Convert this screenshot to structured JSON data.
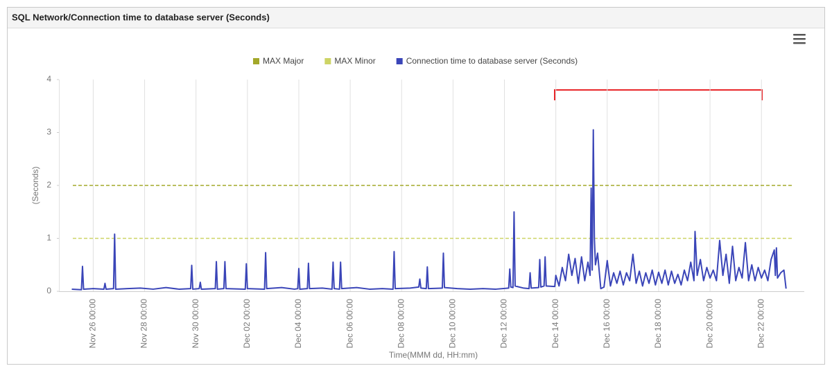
{
  "chart_data": {
    "type": "line",
    "title": "SQL Network/Connection time to database server (Seconds)",
    "xlabel": "Time(MMM dd, HH:mm)",
    "ylabel": "(Seconds)",
    "ylim": [
      0,
      4
    ],
    "yticks": [
      0,
      1,
      2,
      3,
      4
    ],
    "xlim": [
      "Nov 24 16:00",
      "Dec 23 16:00"
    ],
    "xticks": [
      "Nov 26 00:00",
      "Nov 28 00:00",
      "Nov 30 00:00",
      "Dec 02 00:00",
      "Dec 04 00:00",
      "Dec 06 00:00",
      "Dec 08 00:00",
      "Dec 10 00:00",
      "Dec 12 00:00",
      "Dec 14 00:00",
      "Dec 16 00:00",
      "Dec 18 00:00",
      "Dec 20 00:00",
      "Dec 22 00:00"
    ],
    "grid": true,
    "thresholds": [
      {
        "name": "MAX Major",
        "color": "#a3a82a",
        "value": 2
      },
      {
        "name": "MAX Minor",
        "color": "#cdd465",
        "value": 1
      }
    ],
    "x": [
      "Nov 25 04:00",
      "Nov 25 13:00",
      "Nov 25 14:00",
      "Nov 25 15:00",
      "Nov 26 00:00",
      "Nov 26 10:00",
      "Nov 26 11:00",
      "Nov 26 12:00",
      "Nov 26 19:00",
      "Nov 26 20:00",
      "Nov 26 21:00",
      "Nov 27 08:00",
      "Nov 27 20:00",
      "Nov 28 08:00",
      "Nov 28 20:00",
      "Nov 29 08:00",
      "Nov 29 19:00",
      "Nov 29 20:00",
      "Nov 29 21:00",
      "Nov 30 03:00",
      "Nov 30 04:00",
      "Nov 30 05:00",
      "Nov 30 18:00",
      "Nov 30 19:00",
      "Nov 30 20:00",
      "Dec 01 02:00",
      "Dec 01 03:00",
      "Dec 01 04:00",
      "Dec 01 22:00",
      "Dec 01 23:00",
      "Dec 02 00:00",
      "Dec 02 16:00",
      "Dec 02 17:00",
      "Dec 02 18:00",
      "Dec 03 08:00",
      "Dec 03 20:00",
      "Dec 03 23:00",
      "Dec 04 00:00",
      "Dec 04 01:00",
      "Dec 04 08:00",
      "Dec 04 09:00",
      "Dec 04 10:00",
      "Dec 04 22:00",
      "Dec 05 07:00",
      "Dec 05 08:00",
      "Dec 05 09:00",
      "Dec 05 14:00",
      "Dec 05 15:00",
      "Dec 05 16:00",
      "Dec 06 06:00",
      "Dec 06 18:00",
      "Dec 07 06:00",
      "Dec 07 16:00",
      "Dec 07 17:00",
      "Dec 07 18:00",
      "Dec 08 08:00",
      "Dec 08 16:00",
      "Dec 08 17:00",
      "Dec 08 18:00",
      "Dec 08 23:00",
      "Dec 09 00:00",
      "Dec 09 01:00",
      "Dec 09 14:00",
      "Dec 09 15:00",
      "Dec 09 16:00",
      "Dec 10 04:00",
      "Dec 10 16:00",
      "Dec 11 04:00",
      "Dec 11 16:00",
      "Dec 12 04:00",
      "Dec 12 05:00",
      "Dec 12 06:00",
      "Dec 12 08:00",
      "Dec 12 09:00",
      "Dec 12 10:00",
      "Dec 12 18:00",
      "Dec 12 23:00",
      "Dec 13 00:00",
      "Dec 13 01:00",
      "Dec 13 08:00",
      "Dec 13 09:00",
      "Dec 13 10:00",
      "Dec 13 13:00",
      "Dec 13 14:00",
      "Dec 13 15:00",
      "Dec 13 23:00",
      "Dec 14 00:00",
      "Dec 14 03:00",
      "Dec 14 06:00",
      "Dec 14 09:00",
      "Dec 14 12:00",
      "Dec 14 15:00",
      "Dec 14 18:00",
      "Dec 14 21:00",
      "Dec 15 00:00",
      "Dec 15 03:00",
      "Dec 15 06:00",
      "Dec 15 08:00",
      "Dec 15 09:00",
      "Dec 15 10:00",
      "Dec 15 11:00",
      "Dec 15 12:00",
      "Dec 15 13:00",
      "Dec 15 15:00",
      "Dec 15 18:00",
      "Dec 15 21:00",
      "Dec 16 00:00",
      "Dec 16 03:00",
      "Dec 16 06:00",
      "Dec 16 09:00",
      "Dec 16 12:00",
      "Dec 16 15:00",
      "Dec 16 18:00",
      "Dec 16 21:00",
      "Dec 17 00:00",
      "Dec 17 03:00",
      "Dec 17 06:00",
      "Dec 17 09:00",
      "Dec 17 12:00",
      "Dec 17 15:00",
      "Dec 17 18:00",
      "Dec 17 21:00",
      "Dec 18 00:00",
      "Dec 18 03:00",
      "Dec 18 06:00",
      "Dec 18 09:00",
      "Dec 18 12:00",
      "Dec 18 15:00",
      "Dec 18 18:00",
      "Dec 18 21:00",
      "Dec 19 00:00",
      "Dec 19 03:00",
      "Dec 19 06:00",
      "Dec 19 09:00",
      "Dec 19 10:00",
      "Dec 19 12:00",
      "Dec 19 15:00",
      "Dec 19 18:00",
      "Dec 19 21:00",
      "Dec 20 00:00",
      "Dec 20 03:00",
      "Dec 20 06:00",
      "Dec 20 09:00",
      "Dec 20 12:00",
      "Dec 20 15:00",
      "Dec 20 18:00",
      "Dec 20 21:00",
      "Dec 21 00:00",
      "Dec 21 03:00",
      "Dec 21 06:00",
      "Dec 21 09:00",
      "Dec 21 12:00",
      "Dec 21 15:00",
      "Dec 21 18:00",
      "Dec 21 21:00",
      "Dec 22 00:00",
      "Dec 22 03:00",
      "Dec 22 06:00",
      "Dec 22 09:00",
      "Dec 22 12:00",
      "Dec 22 13:00",
      "Dec 22 14:00",
      "Dec 22 15:00",
      "Dec 22 18:00",
      "Dec 22 21:00",
      "Dec 22 23:00"
    ],
    "series": [
      {
        "name": "Connection time to database server (Seconds)",
        "color": "#3a45b8",
        "values": [
          0.04,
          0.03,
          0.47,
          0.04,
          0.05,
          0.04,
          0.15,
          0.04,
          0.05,
          1.08,
          0.04,
          0.05,
          0.06,
          0.04,
          0.07,
          0.04,
          0.05,
          0.49,
          0.04,
          0.05,
          0.17,
          0.04,
          0.05,
          0.56,
          0.04,
          0.05,
          0.56,
          0.05,
          0.04,
          0.52,
          0.05,
          0.04,
          0.73,
          0.05,
          0.07,
          0.04,
          0.05,
          0.43,
          0.04,
          0.05,
          0.53,
          0.05,
          0.06,
          0.04,
          0.55,
          0.05,
          0.04,
          0.55,
          0.05,
          0.07,
          0.04,
          0.05,
          0.04,
          0.75,
          0.05,
          0.06,
          0.08,
          0.23,
          0.06,
          0.05,
          0.46,
          0.05,
          0.06,
          0.72,
          0.07,
          0.05,
          0.04,
          0.05,
          0.04,
          0.06,
          0.42,
          0.08,
          0.07,
          1.5,
          0.1,
          0.06,
          0.05,
          0.35,
          0.06,
          0.07,
          0.6,
          0.08,
          0.1,
          0.65,
          0.1,
          0.09,
          0.3,
          0.1,
          0.45,
          0.2,
          0.7,
          0.3,
          0.62,
          0.15,
          0.65,
          0.2,
          0.55,
          0.3,
          1.95,
          0.4,
          3.05,
          1.0,
          0.5,
          0.72,
          0.05,
          0.08,
          0.58,
          0.1,
          0.35,
          0.15,
          0.38,
          0.12,
          0.35,
          0.2,
          0.7,
          0.15,
          0.38,
          0.1,
          0.35,
          0.15,
          0.4,
          0.12,
          0.36,
          0.15,
          0.4,
          0.12,
          0.38,
          0.15,
          0.32,
          0.12,
          0.4,
          0.2,
          0.55,
          0.2,
          1.13,
          0.3,
          0.6,
          0.2,
          0.45,
          0.25,
          0.4,
          0.2,
          0.96,
          0.3,
          0.7,
          0.15,
          0.85,
          0.2,
          0.45,
          0.25,
          0.92,
          0.2,
          0.5,
          0.2,
          0.45,
          0.25,
          0.4,
          0.2,
          0.6,
          0.78,
          0.3,
          0.82,
          0.25,
          0.35,
          0.4,
          0.05
        ]
      }
    ]
  }
}
